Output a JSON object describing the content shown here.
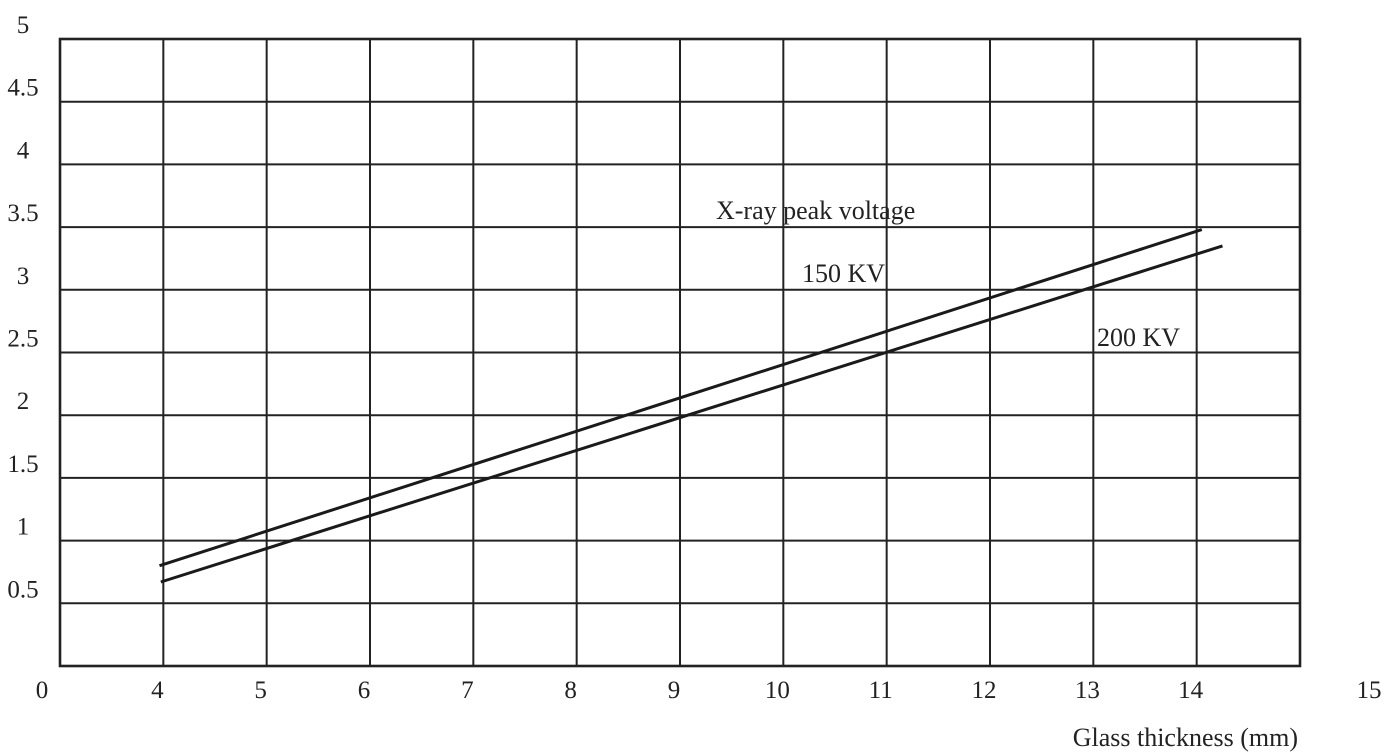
{
  "chart_data": {
    "type": "line",
    "title": "",
    "xlabel": "Glass thickness (mm)",
    "ylabel": "",
    "x_tick_labels": [
      "0",
      "4",
      "5",
      "6",
      "7",
      "8",
      "9",
      "10",
      "11",
      "12",
      "13",
      "14",
      "15"
    ],
    "y_tick_labels": [
      "0.5",
      "1",
      "1.5",
      "2",
      "2.5",
      "3",
      "3.5",
      "4",
      "4.5",
      "5"
    ],
    "x_category_count": 12,
    "ylim": [
      0,
      5
    ],
    "grid": true,
    "legend": "none",
    "annotations": {
      "heading": "X-ray peak voltage",
      "series_1": "150 KV",
      "series_2": "200 KV"
    },
    "series": [
      {
        "name": "150 KV",
        "points": [
          [
            3.85,
            0.8
          ],
          [
            14.05,
            3.48
          ]
        ]
      },
      {
        "name": "200 KV",
        "points": [
          [
            3.9,
            0.67
          ],
          [
            14.25,
            3.35
          ]
        ]
      }
    ]
  }
}
